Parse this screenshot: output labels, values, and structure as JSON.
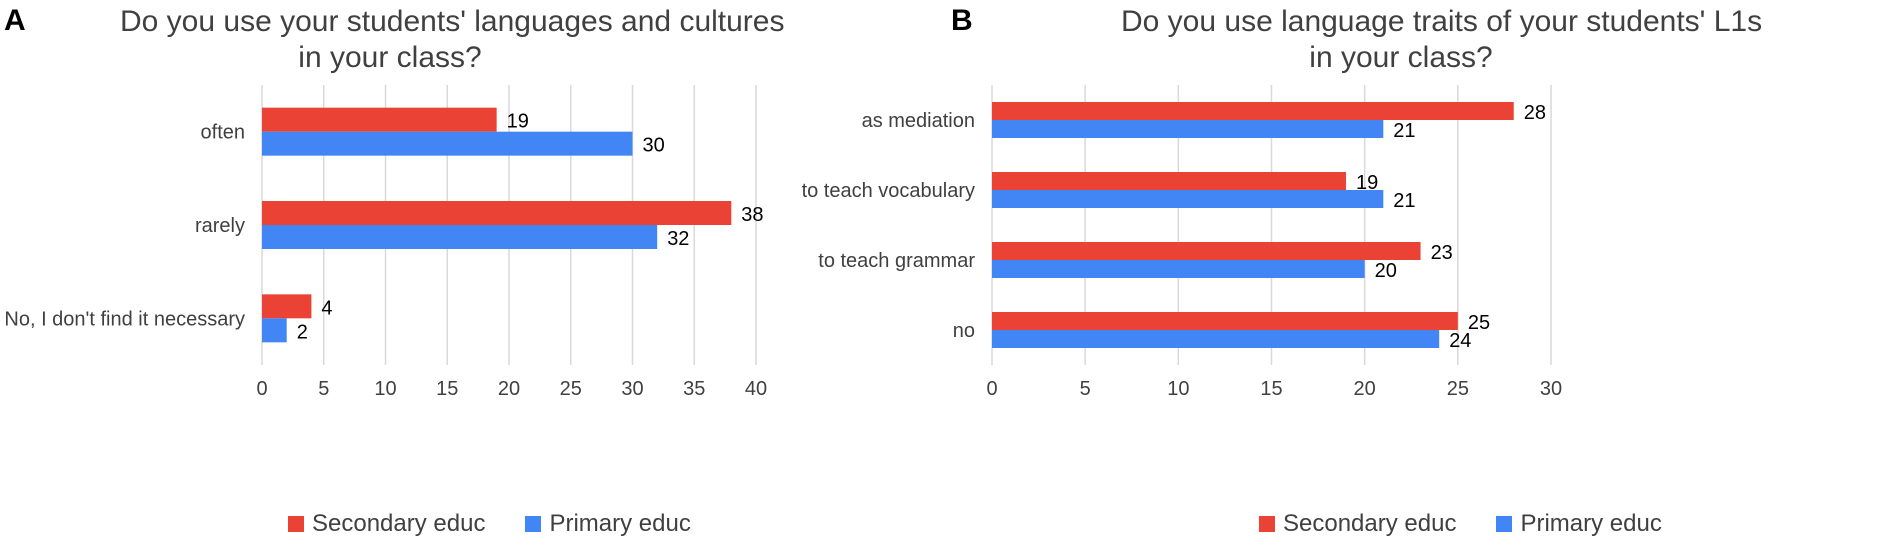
{
  "colors": {
    "secondary": "#EA4335",
    "primary": "#4285F4",
    "grid": "#D9D9D9",
    "text": "#404040"
  },
  "chart_data": [
    {
      "panel": "A",
      "type": "bar",
      "orientation": "horizontal",
      "title_lines": [
        "Do you use your students' languages and cultures",
        "in your class?"
      ],
      "categories": [
        "often",
        "rarely",
        "No, I don't find it necessary"
      ],
      "series": [
        {
          "name": "Secondary educ",
          "color": "#EA4335",
          "values": [
            19,
            38,
            4
          ]
        },
        {
          "name": "Primary educ",
          "color": "#4285F4",
          "values": [
            30,
            32,
            2
          ]
        }
      ],
      "xlim": [
        0,
        40
      ],
      "xticks": [
        "0",
        "5",
        "10",
        "15",
        "20",
        "25",
        "30",
        "35",
        "40"
      ],
      "grid": true,
      "legend": "bottom"
    },
    {
      "panel": "B",
      "type": "bar",
      "orientation": "horizontal",
      "title_lines": [
        "Do you use language traits of your students' L1s",
        "in your class?"
      ],
      "categories": [
        "as mediation",
        "to teach vocabulary",
        "to teach grammar",
        "no"
      ],
      "series": [
        {
          "name": "Secondary educ",
          "color": "#EA4335",
          "values": [
            28,
            19,
            23,
            25
          ]
        },
        {
          "name": "Primary educ",
          "color": "#4285F4",
          "values": [
            21,
            21,
            20,
            24
          ]
        }
      ],
      "xlim": [
        0,
        30
      ],
      "xticks": [
        "0",
        "5",
        "10",
        "15",
        "20",
        "25",
        "30"
      ],
      "grid": true,
      "legend": "bottom"
    }
  ]
}
